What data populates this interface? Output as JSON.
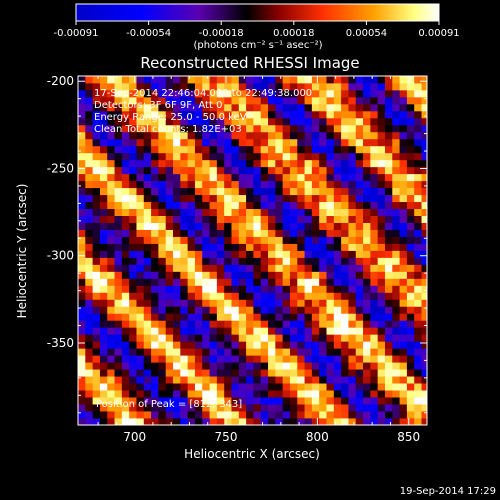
{
  "colorbar": {
    "ticks": [
      "-0.00091",
      "-0.00054",
      "-0.00018",
      "0.00018",
      "0.00054",
      "0.00091"
    ],
    "unit_label": "(photons cm⁻² s⁻¹ asec⁻²)"
  },
  "chart_data": {
    "type": "heatmap",
    "title": "Reconstructed RHESSI Image",
    "xlabel": "Heliocentric X (arcsec)",
    "ylabel": "Heliocentric Y (arcsec)",
    "xlim": [
      669,
      860
    ],
    "ylim": [
      -397,
      -197
    ],
    "xticks": [
      700,
      750,
      800,
      850
    ],
    "yticks": [
      -200,
      -250,
      -300,
      -350
    ],
    "color_range": [
      -0.00091,
      0.00091
    ],
    "colormap": [
      "#0000c8",
      "#0000ff",
      "#5a00b0",
      "#000000",
      "#8c0000",
      "#ff3000",
      "#ffa000",
      "#ffff80",
      "#ffffff"
    ],
    "annotations": [
      "17-Sep-2014 22:46:04.000 to 22:49:38.000",
      "Detectors: 3F 6F 9F, Att 0",
      "Energy Range: 25.0 - 50.0 keV",
      "Clean    Total counts: 1.82E+03"
    ],
    "peak_label": "Position of Peak = [812,-343]",
    "peak": [
      812,
      -343
    ]
  },
  "footer": {
    "timestamp": "19-Sep-2014 17:29"
  },
  "colors": {
    "background": "#000000",
    "text": "#ffffff"
  }
}
